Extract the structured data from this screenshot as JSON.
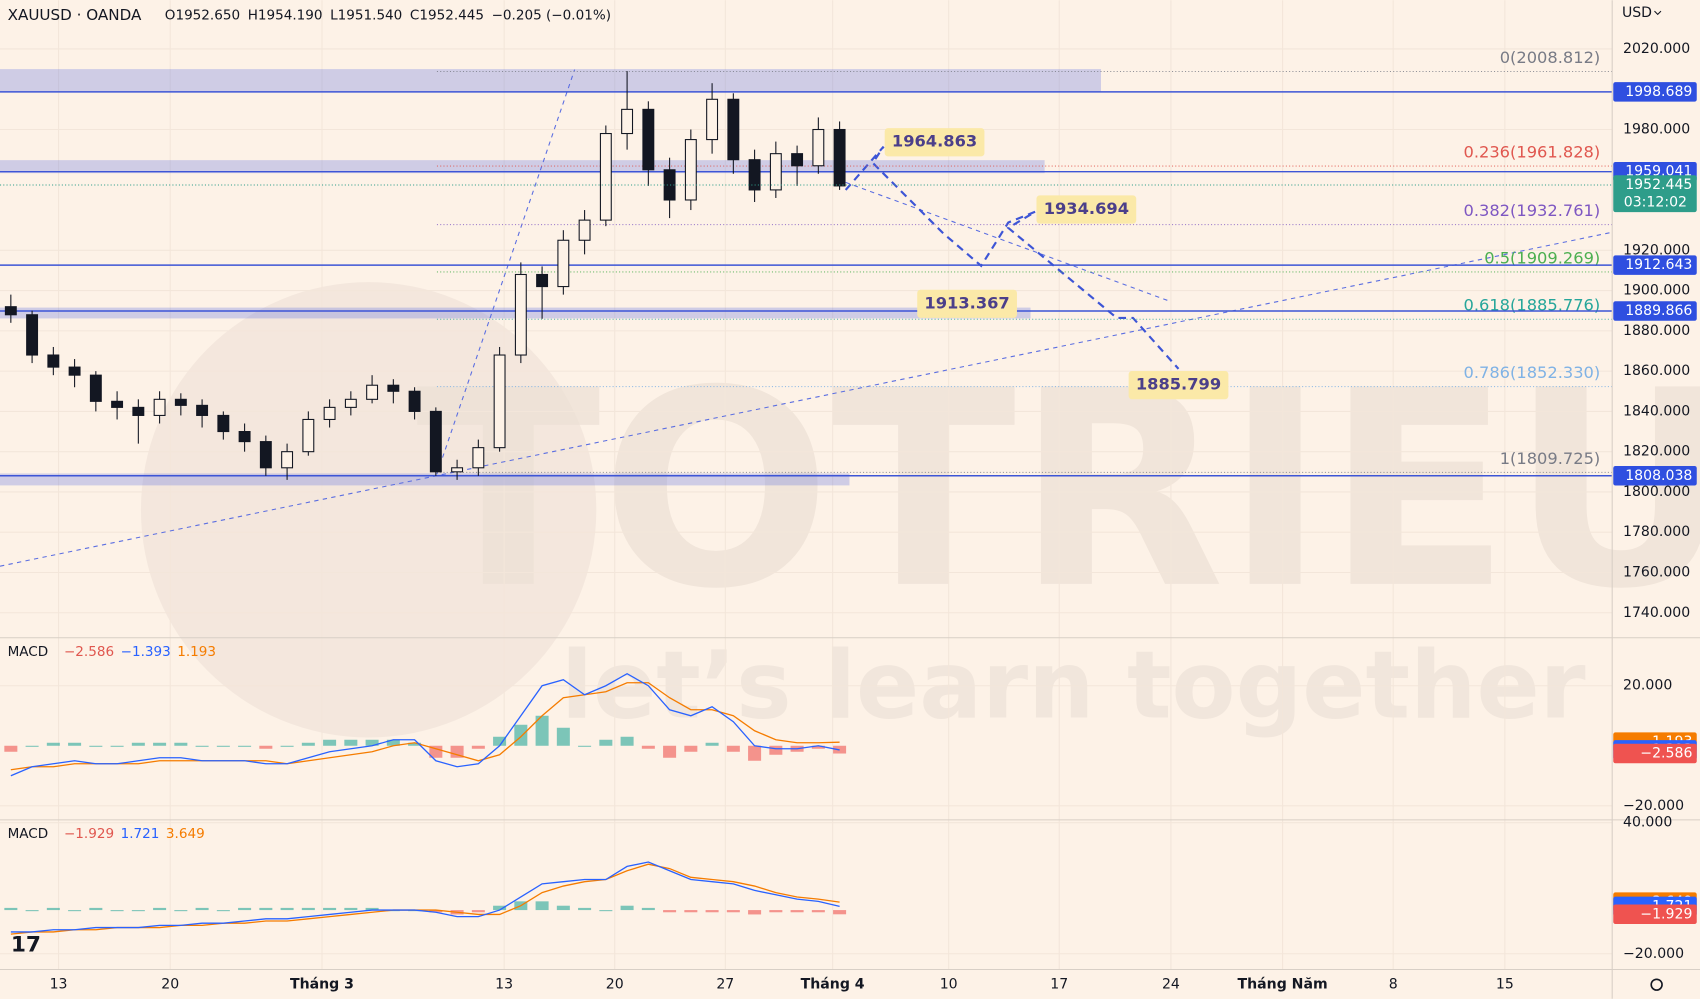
{
  "header": {
    "symbol": "XAUUSD · OANDA",
    "ohlc": [
      "O1952.650",
      "H1954.190",
      "L1951.540",
      "C1952.445"
    ],
    "change": "−0.205 (−0.01%)",
    "currency": "USD"
  },
  "watermark": {
    "brand": "TOTRIEU",
    "slogan": "let’s learn together"
  },
  "chart_data": [
    {
      "type": "candlestick",
      "ylim": [
        1727.6,
        2044.2
      ],
      "yticks": [
        {
          "value": 2020,
          "label": "2020.000"
        },
        {
          "value": 1980,
          "label": "1980.000"
        },
        {
          "value": 1920,
          "label": "1920.000"
        },
        {
          "value": 1900,
          "label": "1900.000"
        },
        {
          "value": 1880,
          "label": "1880.000"
        },
        {
          "value": 1860,
          "label": "1860.000"
        },
        {
          "value": 1840,
          "label": "1840.000"
        },
        {
          "value": 1820,
          "label": "1820.000"
        },
        {
          "value": 1800,
          "label": "1800.000"
        },
        {
          "value": 1780,
          "label": "1780.000"
        },
        {
          "value": 1760,
          "label": "1760.000"
        },
        {
          "value": 1740,
          "label": "1740.000"
        }
      ],
      "x_labels": [
        "13",
        "20",
        "Tháng 3",
        "13",
        "20",
        "27",
        "Tháng 4",
        "10",
        "17",
        "24",
        "Tháng Năm",
        "8",
        "15"
      ],
      "candles": [
        [
          1892,
          1898,
          1884,
          1888
        ],
        [
          1888,
          1890,
          1864,
          1868
        ],
        [
          1868,
          1872,
          1858,
          1862
        ],
        [
          1862,
          1866,
          1852,
          1858
        ],
        [
          1858,
          1860,
          1840,
          1845
        ],
        [
          1845,
          1850,
          1836,
          1842
        ],
        [
          1842,
          1846,
          1824,
          1838
        ],
        [
          1838,
          1850,
          1834,
          1846
        ],
        [
          1846,
          1849,
          1838,
          1843
        ],
        [
          1843,
          1846,
          1832,
          1838
        ],
        [
          1838,
          1840,
          1826,
          1830
        ],
        [
          1830,
          1834,
          1820,
          1825
        ],
        [
          1825,
          1828,
          1808,
          1812
        ],
        [
          1812,
          1824,
          1806,
          1820
        ],
        [
          1820,
          1840,
          1818,
          1836
        ],
        [
          1836,
          1846,
          1832,
          1842
        ],
        [
          1842,
          1850,
          1838,
          1846
        ],
        [
          1846,
          1858,
          1844,
          1853
        ],
        [
          1853,
          1856,
          1844,
          1850
        ],
        [
          1850,
          1852,
          1836,
          1840
        ],
        [
          1840,
          1842,
          1808,
          1810
        ],
        [
          1810,
          1816,
          1806,
          1812
        ],
        [
          1812,
          1826,
          1808,
          1822
        ],
        [
          1822,
          1872,
          1820,
          1868
        ],
        [
          1868,
          1914,
          1864,
          1908
        ],
        [
          1908,
          1912,
          1886,
          1902
        ],
        [
          1902,
          1930,
          1898,
          1925
        ],
        [
          1925,
          1940,
          1918,
          1935
        ],
        [
          1935,
          1982,
          1932,
          1978
        ],
        [
          1978,
          2009,
          1970,
          1990
        ],
        [
          1990,
          1994,
          1952,
          1960
        ],
        [
          1960,
          1966,
          1936,
          1945
        ],
        [
          1945,
          1980,
          1940,
          1975
        ],
        [
          1975,
          2003,
          1968,
          1995
        ],
        [
          1995,
          1998,
          1958,
          1965
        ],
        [
          1965,
          1970,
          1944,
          1950
        ],
        [
          1950,
          1974,
          1946,
          1968
        ],
        [
          1968,
          1972,
          1952,
          1962
        ],
        [
          1962,
          1986,
          1958,
          1980
        ],
        [
          1980,
          1984,
          1950,
          1952
        ]
      ],
      "levels": [
        1998.689,
        1959.041,
        1912.643,
        1889.866,
        1808.038
      ],
      "last_price": 1952.445,
      "countdown": "03:12:02",
      "fib": [
        {
          "label": "0(2008.812)",
          "price": 2008.812,
          "color": "#787b86"
        },
        {
          "label": "0.236(1961.828)",
          "price": 1961.828,
          "color": "#e0574f"
        },
        {
          "label": "0.382(1932.761)",
          "price": 1932.761,
          "color": "#7e57c2"
        },
        {
          "label": "0.5(1909.269)",
          "price": 1909.269,
          "color": "#4caf50"
        },
        {
          "label": "0.618(1885.776)",
          "price": 1885.776,
          "color": "#26a69a"
        },
        {
          "label": "0.786(1852.330)",
          "price": 1852.33,
          "color": "#7fb2e5"
        },
        {
          "label": "1(1809.725)",
          "price": 1809.725,
          "color": "#787b86"
        }
      ],
      "annotations": [
        1964.863,
        1934.694,
        1913.367,
        1885.799
      ]
    },
    {
      "type": "macd",
      "title": "MACD",
      "ylim": [
        -24.7,
        36
      ],
      "yticks": [
        {
          "value": 20,
          "label": "20.000"
        },
        {
          "value": -20,
          "label": "−20.000"
        }
      ],
      "histogram": [
        -2,
        0,
        1,
        1,
        0,
        0,
        1,
        1,
        1,
        0,
        0,
        0,
        -1,
        0,
        1,
        2,
        2,
        2,
        2,
        1,
        -4,
        -4,
        -1,
        3,
        7,
        10,
        6,
        0,
        2,
        3,
        -1,
        -4,
        -2,
        1,
        -2,
        -5,
        -3,
        -2,
        -1,
        -2.586
      ],
      "macd": [
        -10,
        -7,
        -6,
        -5,
        -6,
        -6,
        -5,
        -4,
        -4,
        -5,
        -5,
        -5,
        -6,
        -6,
        -4,
        -2,
        -1,
        0,
        2,
        2,
        -5,
        -7,
        -6,
        0,
        10,
        20,
        22,
        17,
        20,
        24,
        20,
        12,
        10,
        13,
        8,
        0,
        -1,
        -1,
        0,
        -1.393
      ],
      "signal": [
        -8,
        -7,
        -7,
        -6,
        -6,
        -6,
        -6,
        -5,
        -5,
        -5,
        -5,
        -5,
        -5,
        -6,
        -5,
        -4,
        -3,
        -2,
        0,
        1,
        -1,
        -3,
        -5,
        -3,
        3,
        10,
        16,
        17,
        18,
        21,
        21,
        16,
        12,
        12,
        10,
        5,
        2,
        1,
        1,
        1.193
      ],
      "value_labels": {
        "histogram": "−2.586",
        "macd": "−1.393",
        "signal": "1.193"
      }
    },
    {
      "type": "macd",
      "title": "MACD",
      "ylim": [
        -27.2,
        41.3
      ],
      "yticks": [
        {
          "value": 40,
          "label": "40.000"
        },
        {
          "value": -20,
          "label": "−20.000"
        }
      ],
      "histogram": [
        1,
        0,
        1,
        0,
        1,
        0,
        0,
        1,
        0,
        1,
        0,
        1,
        1,
        1,
        1,
        1,
        1,
        1,
        0,
        0,
        -1,
        -2,
        -1,
        2,
        4,
        4,
        2,
        1,
        0,
        2,
        1,
        -1,
        -1,
        -1,
        -1,
        -2,
        -1,
        -1,
        -1,
        -1.929
      ],
      "macd": [
        -10,
        -10,
        -9,
        -9,
        -8,
        -8,
        -8,
        -7,
        -7,
        -6,
        -6,
        -5,
        -4,
        -4,
        -3,
        -2,
        -1,
        0,
        0,
        0,
        -1,
        -3,
        -3,
        0,
        6,
        12,
        13,
        14,
        14,
        20,
        22,
        18,
        14,
        13,
        12,
        9,
        7,
        5,
        4,
        1.721
      ],
      "signal": [
        -11,
        -10,
        -10,
        -9,
        -9,
        -8,
        -8,
        -8,
        -7,
        -7,
        -6,
        -6,
        -5,
        -5,
        -4,
        -3,
        -2,
        -1,
        0,
        0,
        0,
        -1,
        -2,
        -2,
        2,
        8,
        11,
        13,
        14,
        18,
        21,
        19,
        15,
        14,
        13,
        11,
        8,
        6,
        5,
        3.649
      ],
      "value_labels": {
        "histogram": "−1.929",
        "macd": "1.721",
        "signal": "3.649"
      }
    }
  ]
}
